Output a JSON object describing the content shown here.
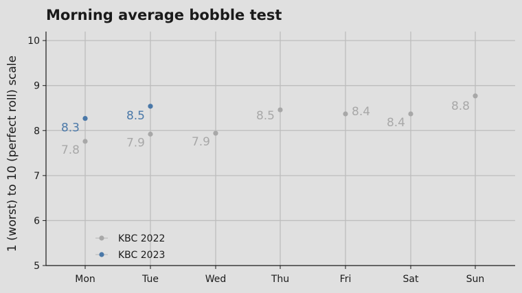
{
  "chart_data": {
    "type": "scatter",
    "title": "Morning average bobble test",
    "xlabel": "",
    "ylabel": "1 (worst) to 10 (perfect roll) scale",
    "categories": [
      "Mon",
      "Tue",
      "Wed",
      "Thu",
      "Fri",
      "Sat",
      "Sun"
    ],
    "ylim": [
      5,
      10.2
    ],
    "yticks": [
      5,
      6,
      7,
      8,
      9,
      10
    ],
    "grid": true,
    "legend_position": "bottom-left",
    "series": [
      {
        "name": "KBC 2022",
        "color": "#a8a8a8",
        "values": [
          7.76,
          7.92,
          7.94,
          8.46,
          8.37,
          8.37,
          8.77
        ],
        "labels": [
          "7.8",
          "7.9",
          "7.9",
          "8.5",
          "8.4",
          "8.4",
          "8.8"
        ]
      },
      {
        "name": "KBC 2023",
        "color": "#4a78a8",
        "values": [
          8.27,
          8.54,
          null,
          null,
          null,
          null,
          null
        ],
        "labels": [
          "8.3",
          "8.5",
          null,
          null,
          null,
          null,
          null
        ]
      }
    ]
  }
}
